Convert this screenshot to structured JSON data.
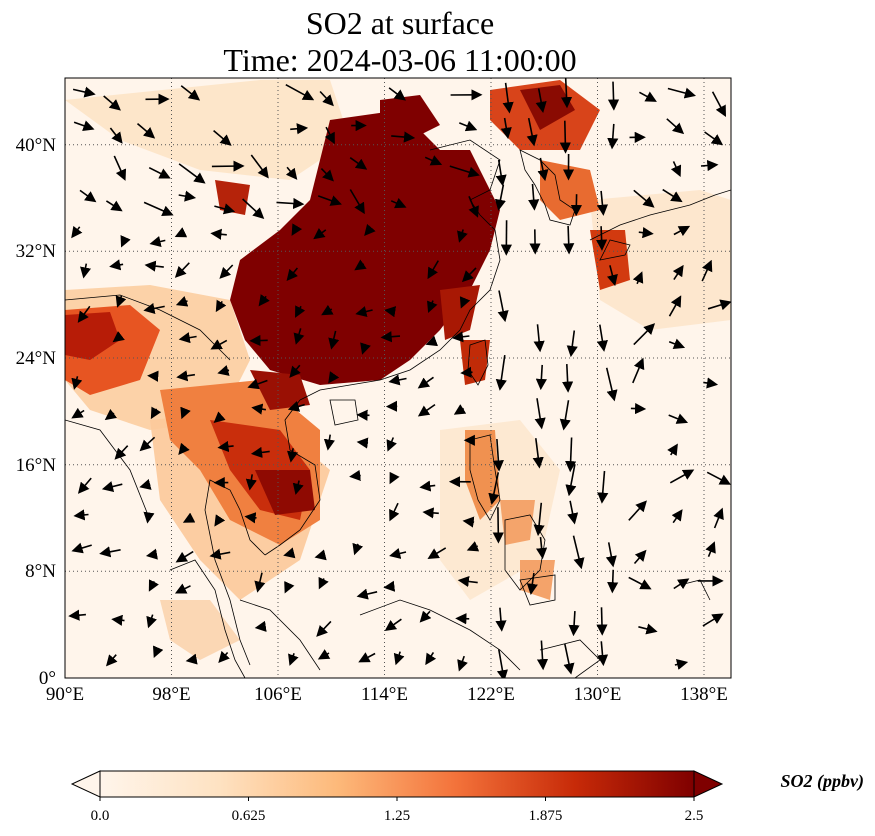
{
  "title": "SO2 at surface",
  "subtitle": "Time: 2024-03-06 11:00:00",
  "lon_ticks": [
    "90°E",
    "98°E",
    "106°E",
    "114°E",
    "122°E",
    "130°E",
    "138°E"
  ],
  "lat_ticks": [
    "0°",
    "8°N",
    "16°N",
    "24°N",
    "32°N",
    "40°N"
  ],
  "colorbar": {
    "label": "SO2 (ppbv)",
    "ticks": [
      "0.0",
      "0.625",
      "1.25",
      "1.875",
      "2.5"
    ],
    "min": 0.0,
    "max": 2.5,
    "extend": "both",
    "colormap": [
      "#fff5eb",
      "#fdd8b2",
      "#fdae6b",
      "#f16913",
      "#d94801",
      "#a63603",
      "#7f0000"
    ]
  },
  "map": {
    "lon_range": [
      90,
      140
    ],
    "lat_range": [
      0,
      45
    ],
    "gridlines": "dotted",
    "background_color": "#fff5eb",
    "high_concentration_color": "#7f0000"
  }
}
